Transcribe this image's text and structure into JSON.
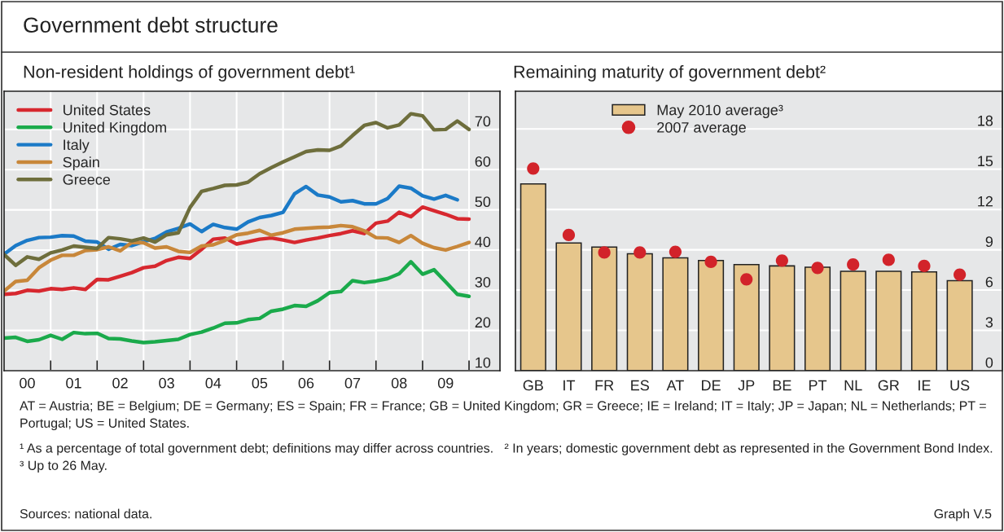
{
  "chart_data": [
    {
      "type": "line",
      "title": "Government debt structure",
      "subtitle": "Non-resident holdings of government debt¹",
      "x": [
        "2000-01",
        "2000-04",
        "2000-07",
        "2000-10",
        "2001-01",
        "2001-04",
        "2001-07",
        "2001-10",
        "2002-01",
        "2002-04",
        "2002-07",
        "2002-10",
        "2003-01",
        "2003-04",
        "2003-07",
        "2003-10",
        "2004-01",
        "2004-04",
        "2004-07",
        "2004-10",
        "2005-01",
        "2005-04",
        "2005-07",
        "2005-10",
        "2006-01",
        "2006-04",
        "2006-07",
        "2006-10",
        "2007-01",
        "2007-04",
        "2007-07",
        "2007-10",
        "2008-01",
        "2008-04",
        "2008-07",
        "2008-10",
        "2009-01",
        "2009-04",
        "2009-07",
        "2009-10",
        "2010-01"
      ],
      "series": [
        {
          "name": "United States",
          "color": "#d7282f",
          "values": [
            29.0,
            29.2,
            30.0,
            29.8,
            30.4,
            30.2,
            30.6,
            30.2,
            32.7,
            32.6,
            33.5,
            34.4,
            35.6,
            36.0,
            37.4,
            38.2,
            37.9,
            40.2,
            42.7,
            43.0,
            41.5,
            42.1,
            42.7,
            43.0,
            42.5,
            41.9,
            42.5,
            43.0,
            43.6,
            44.1,
            44.8,
            44.1,
            46.7,
            47.2,
            49.4,
            48.3,
            50.7,
            49.8,
            48.9,
            47.8,
            47.7
          ]
        },
        {
          "name": "United Kingdom",
          "color": "#1aaa4b",
          "values": [
            18.1,
            18.3,
            17.3,
            17.7,
            18.8,
            17.8,
            19.5,
            19.2,
            19.3,
            18.0,
            17.9,
            17.4,
            17.0,
            17.2,
            17.5,
            17.8,
            19.0,
            19.6,
            20.6,
            21.8,
            21.9,
            22.7,
            23.0,
            24.8,
            25.3,
            26.2,
            26.0,
            27.4,
            29.4,
            29.7,
            32.4,
            31.9,
            32.3,
            32.9,
            34.1,
            37.1,
            34.0,
            35.1,
            32.1,
            29.0,
            28.5
          ]
        },
        {
          "name": "Italy",
          "color": "#1b7ac7",
          "values": [
            39.0,
            41.1,
            42.4,
            43.1,
            43.2,
            43.6,
            43.5,
            42.2,
            42.0,
            40.2,
            41.4,
            41.1,
            42.1,
            42.9,
            44.5,
            45.4,
            46.5,
            44.6,
            46.4,
            45.6,
            45.2,
            47.0,
            48.1,
            48.6,
            49.4,
            54.0,
            55.8,
            53.7,
            53.2,
            52.0,
            52.3,
            51.5,
            51.5,
            52.8,
            55.9,
            55.4,
            53.5,
            52.7,
            53.6,
            52.5,
            null
          ]
        },
        {
          "name": "Spain",
          "color": "#c8873a",
          "values": [
            29.8,
            32.2,
            32.5,
            35.6,
            37.5,
            38.7,
            38.7,
            39.9,
            40.1,
            40.8,
            39.8,
            41.9,
            41.8,
            40.5,
            40.8,
            39.7,
            39.4,
            41.0,
            41.3,
            42.4,
            43.8,
            44.2,
            44.9,
            43.7,
            44.3,
            45.2,
            45.4,
            45.6,
            45.7,
            46.1,
            45.8,
            44.8,
            43.1,
            43.0,
            41.9,
            43.6,
            41.7,
            40.6,
            40.0,
            40.9,
            41.9
          ]
        },
        {
          "name": "Greece",
          "color": "#6e6e3c",
          "values": [
            38.9,
            36.2,
            38.3,
            37.7,
            39.3,
            40.0,
            41.0,
            40.7,
            40.4,
            43.1,
            42.8,
            42.3,
            43.0,
            42.0,
            43.8,
            44.3,
            50.6,
            54.6,
            55.3,
            56.1,
            56.2,
            56.9,
            59.0,
            60.5,
            61.9,
            63.2,
            64.5,
            64.9,
            64.8,
            65.9,
            68.5,
            71.0,
            71.7,
            70.4,
            71.1,
            73.9,
            73.4,
            69.9,
            70.0,
            72.1,
            70.0
          ]
        }
      ],
      "xlim": [
        "2000-01",
        "2010-09"
      ],
      "xticks": [
        {
          "value": "2000-07",
          "label": "00"
        },
        {
          "value": "2001-07",
          "label": "01"
        },
        {
          "value": "2002-07",
          "label": "02"
        },
        {
          "value": "2003-07",
          "label": "03"
        },
        {
          "value": "2004-07",
          "label": "04"
        },
        {
          "value": "2005-07",
          "label": "05"
        },
        {
          "value": "2006-07",
          "label": "06"
        },
        {
          "value": "2007-07",
          "label": "07"
        },
        {
          "value": "2008-07",
          "label": "08"
        },
        {
          "value": "2009-07",
          "label": "09"
        },
        {
          "value": "2001-01",
          "label": null
        },
        {
          "value": "2002-01",
          "label": null
        },
        {
          "value": "2003-01",
          "label": null
        },
        {
          "value": "2004-01",
          "label": null
        },
        {
          "value": "2005-01",
          "label": null
        },
        {
          "value": "2006-01",
          "label": null
        },
        {
          "value": "2007-01",
          "label": null
        },
        {
          "value": "2008-01",
          "label": null
        },
        {
          "value": "2009-01",
          "label": null
        },
        {
          "value": "2010-01",
          "label": null
        }
      ],
      "ylim": [
        10,
        79.5
      ],
      "yticks": [
        10,
        20,
        30,
        40,
        50,
        60,
        70
      ],
      "grid": true,
      "legend": "top left",
      "annotations": [
        "AT = Austria; BE = Belgium; DE = Germany; ES = Spain; FR = France; GB = United Kingdom; GR = Greece; IE = Ireland; IT = Italy; JP = Japan; NL = Netherlands; PT = Portugal; US = United States.",
        "¹ As a percentage of total government debt; definitions may differ across countries.   ² In years; domestic government debt as represented in the Government Bond Index.   ³ Up to 26 May.",
        "Sources: national data.",
        "Graph V.5"
      ]
    },
    {
      "type": "bar",
      "subtitle": "Remaining maturity of government debt²",
      "categories": [
        "GB",
        "IT",
        "FR",
        "ES",
        "AT",
        "DE",
        "JP",
        "BE",
        "PT",
        "NL",
        "GR",
        "IE",
        "US"
      ],
      "series": [
        {
          "name": "May 2010 average³",
          "color": "#e6c68c",
          "values": [
            13.9,
            9.5,
            9.2,
            8.7,
            8.4,
            8.2,
            7.9,
            7.8,
            7.7,
            7.4,
            7.4,
            7.35,
            6.7
          ]
        },
        {
          "name": "2007 average",
          "type": "scatter",
          "marker": "circle",
          "color": "#d2232a",
          "values": [
            15.05,
            10.1,
            8.8,
            8.8,
            8.85,
            8.1,
            6.8,
            8.2,
            7.65,
            7.9,
            8.25,
            7.8,
            7.15
          ]
        }
      ],
      "ylim": [
        0,
        20.8
      ],
      "yticks": [
        0,
        3,
        6,
        9,
        12,
        15,
        18
      ],
      "grid": "y",
      "legend": "top left"
    }
  ]
}
